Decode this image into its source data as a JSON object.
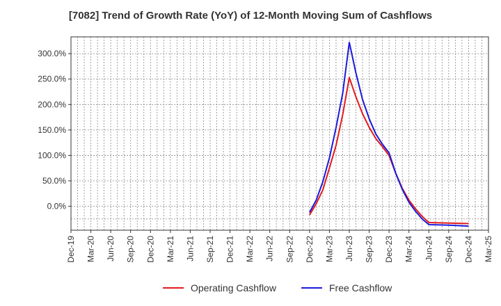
{
  "chart_data": {
    "type": "line",
    "title": "[7082]  Trend of Growth Rate (YoY) of 12-Month Moving Sum of Cashflows",
    "xlabel": "",
    "ylabel": "",
    "x_ticks": [
      "Dec-19",
      "Mar-20",
      "Jun-20",
      "Sep-20",
      "Dec-20",
      "Mar-21",
      "Jun-21",
      "Sep-21",
      "Dec-21",
      "Mar-22",
      "Jun-22",
      "Sep-22",
      "Dec-22",
      "Mar-23",
      "Jun-23",
      "Sep-23",
      "Dec-23",
      "Mar-24",
      "Jun-24",
      "Sep-24",
      "Dec-24",
      "Mar-25"
    ],
    "y_ticks": [
      "0.0%",
      "50.0%",
      "100.0%",
      "150.0%",
      "200.0%",
      "250.0%",
      "300.0%"
    ],
    "y_tick_values": [
      0,
      50,
      100,
      150,
      200,
      250,
      300
    ],
    "ylim": [
      -47,
      333
    ],
    "grid": true,
    "legend_position": "bottom",
    "series": [
      {
        "name": "Operating Cashflow",
        "color": "#e31a1c",
        "x": [
          "Dec-22",
          "Jan-23",
          "Feb-23",
          "Mar-23",
          "Apr-23",
          "May-23",
          "Jun-23",
          "Jul-23",
          "Aug-23",
          "Sep-23",
          "Oct-23",
          "Nov-23",
          "Dec-23",
          "Jan-24",
          "Feb-24",
          "Mar-24",
          "Apr-24",
          "May-24",
          "Jun-24",
          "Sep-24",
          "Dec-24"
        ],
        "y": [
          -17,
          5,
          32,
          75,
          120,
          180,
          253,
          215,
          182,
          155,
          133,
          117,
          100,
          65,
          35,
          12,
          -5,
          -20,
          -32,
          -33,
          -34
        ]
      },
      {
        "name": "Free Cashflow",
        "color": "#1a1adb",
        "x": [
          "Dec-22",
          "Jan-23",
          "Feb-23",
          "Mar-23",
          "Apr-23",
          "May-23",
          "Jun-23",
          "Jul-23",
          "Aug-23",
          "Sep-23",
          "Oct-23",
          "Nov-23",
          "Dec-23",
          "Jan-24",
          "Feb-24",
          "Mar-24",
          "Apr-24",
          "May-24",
          "Jun-24",
          "Sep-24",
          "Dec-24"
        ],
        "y": [
          -12,
          12,
          48,
          95,
          155,
          222,
          322,
          262,
          210,
          172,
          142,
          122,
          105,
          65,
          33,
          8,
          -10,
          -25,
          -36,
          -37,
          -39
        ]
      }
    ]
  }
}
